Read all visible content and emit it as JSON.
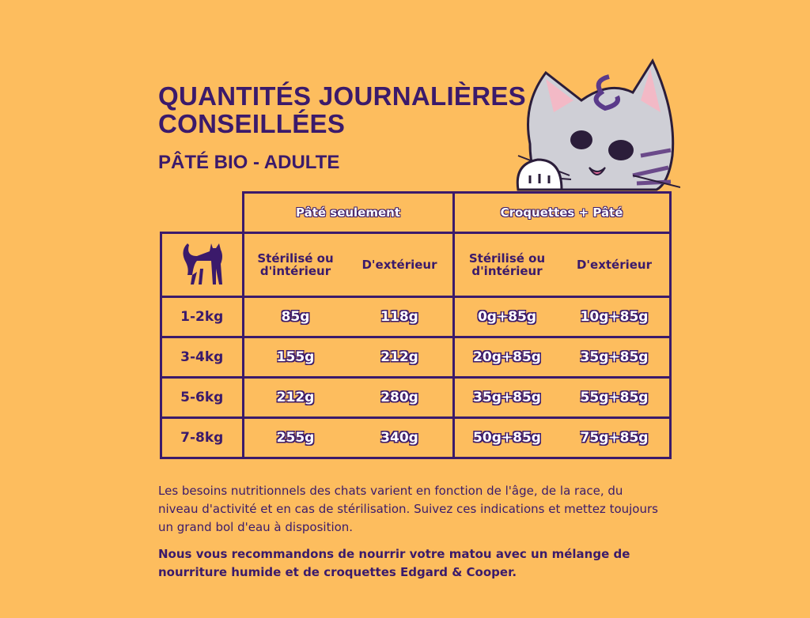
{
  "header": {
    "title": "QUANTITÉS JOURNALIÈRES CONSEILLÉES",
    "subtitle": "PÂTÉ BIO - ADULTE"
  },
  "table": {
    "groups": [
      "Pâté seulement",
      "Croquettes + Pâté"
    ],
    "columns": [
      "Stérilisé ou d'intérieur",
      "D'extérieur",
      "Stérilisé ou d'intérieur",
      "D'extérieur"
    ],
    "rows": [
      [
        "1-2kg",
        "85g",
        "118g",
        "0g+85g",
        "10g+85g"
      ],
      [
        "3-4kg",
        "155g",
        "212g",
        "20g+85g",
        "35g+85g"
      ],
      [
        "5-6kg",
        "212g",
        "280g",
        "35g+85g",
        "55g+85g"
      ],
      [
        "7-8kg",
        "255g",
        "340g",
        "50g+85g",
        "75g+85g"
      ]
    ]
  },
  "footer": {
    "note": "Les besoins nutritionnels des chats varient en fonction de l'âge, de la race, du niveau d'activité et en cas de stérilisation. Suivez ces indications et mettez toujours un grand bol d'eau à disposition.",
    "recommendation": "Nous vous recommandons de nourrir votre matou avec un mélange de nourriture humide et de croquettes Edgard & Cooper."
  }
}
